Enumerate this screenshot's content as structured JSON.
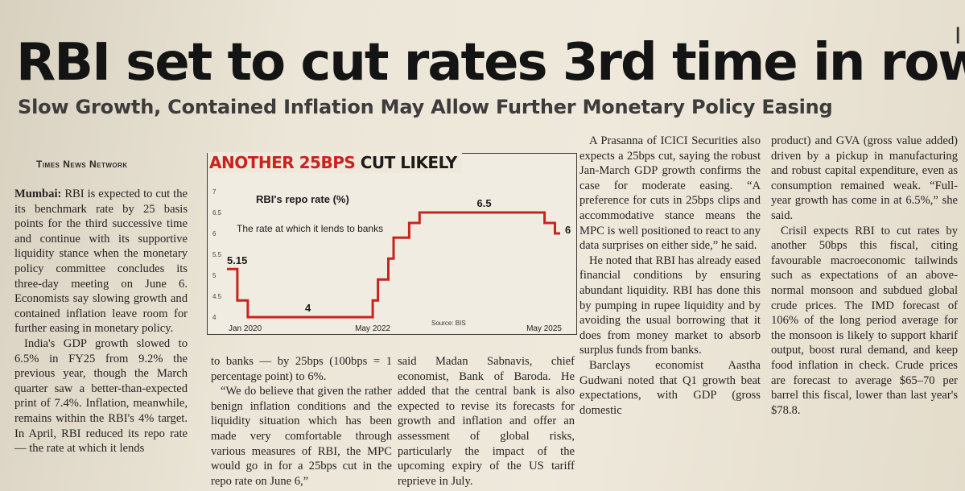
{
  "edge_glyph": "I",
  "headline": "RBI set to cut rates 3rd time in row",
  "subhead": "Slow Growth, Contained Inflation May Allow Further Monetary Policy Easing",
  "byline": "Times News Network",
  "columns": {
    "col1": {
      "dateline": "Mumbai:",
      "p1": " RBI is expected to cut the its benchmark rate by 25 basis points for the third successive time and continue with its supportive liquidity stance when the monetary policy committee concludes its three-day meeting on June 6. Economists say slowing growth and contained inflation leave room for further easing in monetary policy.",
      "p2": "India's GDP growth slowed to 6.5% in FY25 from 9.2% the previous year, though the March quarter saw a better-than-expected print of 7.4%. Inflation, meanwhile, remains within the RBI's 4% target. In April, RBI reduced its repo rate — the rate at which it lends"
    },
    "col2": {
      "p1": "to banks — by 25bps (100bps = 1 percentage point) to 6%.",
      "p2": "“We do believe that given the rather benign inflation conditions and the liquidity situation which has been made very comfortable through various measures of RBI, the MPC would go in for a 25bps cut in the repo rate on June 6,”"
    },
    "col3": {
      "p1": "said Madan Sabnavis, chief economist, Bank of Baroda. He added that the central bank is also expected to revise its forecasts for growth and inflation and offer an assessment of global risks, particularly the impact of the upcoming expiry of the US tariff reprieve in July."
    },
    "col4": {
      "p1": "A Prasanna of ICICI Securities also expects a 25bps cut, saying the robust Jan-March GDP growth confirms the case for moderate easing. “A preference for cuts in 25bps clips and accommodative stance means the MPC is well positioned to react to any data surprises on either side,” he said.",
      "p2": "He noted that RBI has already eased financial conditions by ensuring abundant liquidity. RBI has done this by pumping in rupee liquidity and by avoiding the usual borrowing that it does from money market to absorb surplus funds from banks.",
      "p3": "Barclays economist Aastha Gudwani noted that Q1 growth beat expectations, with GDP (gross domestic"
    },
    "col5": {
      "p1": "product) and GVA (gross value added) driven by a pickup in manufacturing and robust capital expenditure, even as consumption remained weak. “Full-year growth has come in at 6.5%,” she said.",
      "p2": "Crisil expects RBI to cut rates by another 50bps this fiscal, citing favourable macroeconomic tailwinds such as expectations of an above-normal monsoon and subdued global crude prices. The IMD forecast of 106% of the long period average for the monsoon is likely to support kharif output, boost rural demand, and keep food inflation in check. Crude prices are forecast to average $65–70 per barrel this fiscal, lower than last year's $78.8."
    }
  },
  "chart_title": {
    "red": "ANOTHER 25BPS",
    "black": " CUT LIKELY"
  },
  "chart_data": {
    "type": "line",
    "title": "RBI's repo rate (%)",
    "subtitle": "The rate at which it lends to banks",
    "source": "Source: BIS",
    "x_tick_labels": [
      "Jan 2020",
      "May 2022",
      "May 2025"
    ],
    "y_ticks": [
      "4",
      "4.5",
      "5",
      "5.5",
      "6",
      "6.5",
      "7"
    ],
    "ylim": [
      4,
      7
    ],
    "line_color": "#c8241e",
    "series": [
      {
        "points": [
          [
            "2020-01",
            5.15
          ],
          [
            "2020-03",
            5.15
          ],
          [
            "2020-03",
            4.4
          ],
          [
            "2020-05",
            4.4
          ],
          [
            "2020-05",
            4.0
          ],
          [
            "2022-05",
            4.0
          ],
          [
            "2022-05",
            4.4
          ],
          [
            "2022-06",
            4.4
          ],
          [
            "2022-06",
            4.9
          ],
          [
            "2022-08",
            4.9
          ],
          [
            "2022-08",
            5.4
          ],
          [
            "2022-09",
            5.4
          ],
          [
            "2022-09",
            5.9
          ],
          [
            "2022-12",
            5.9
          ],
          [
            "2022-12",
            6.25
          ],
          [
            "2023-02",
            6.25
          ],
          [
            "2023-02",
            6.5
          ],
          [
            "2025-02",
            6.5
          ],
          [
            "2025-02",
            6.25
          ],
          [
            "2025-04",
            6.25
          ],
          [
            "2025-04",
            6.0
          ],
          [
            "2025-05",
            6.0
          ]
        ]
      }
    ],
    "data_labels": [
      {
        "text": "5.15",
        "x": "2020-01",
        "y": 5.15
      },
      {
        "text": "4",
        "x": "2021-04",
        "y": 4.0
      },
      {
        "text": "6.5",
        "x": "2024-01",
        "y": 6.5
      },
      {
        "text": "6",
        "x": "2025-05",
        "y": 6.0
      }
    ],
    "grid": false
  }
}
